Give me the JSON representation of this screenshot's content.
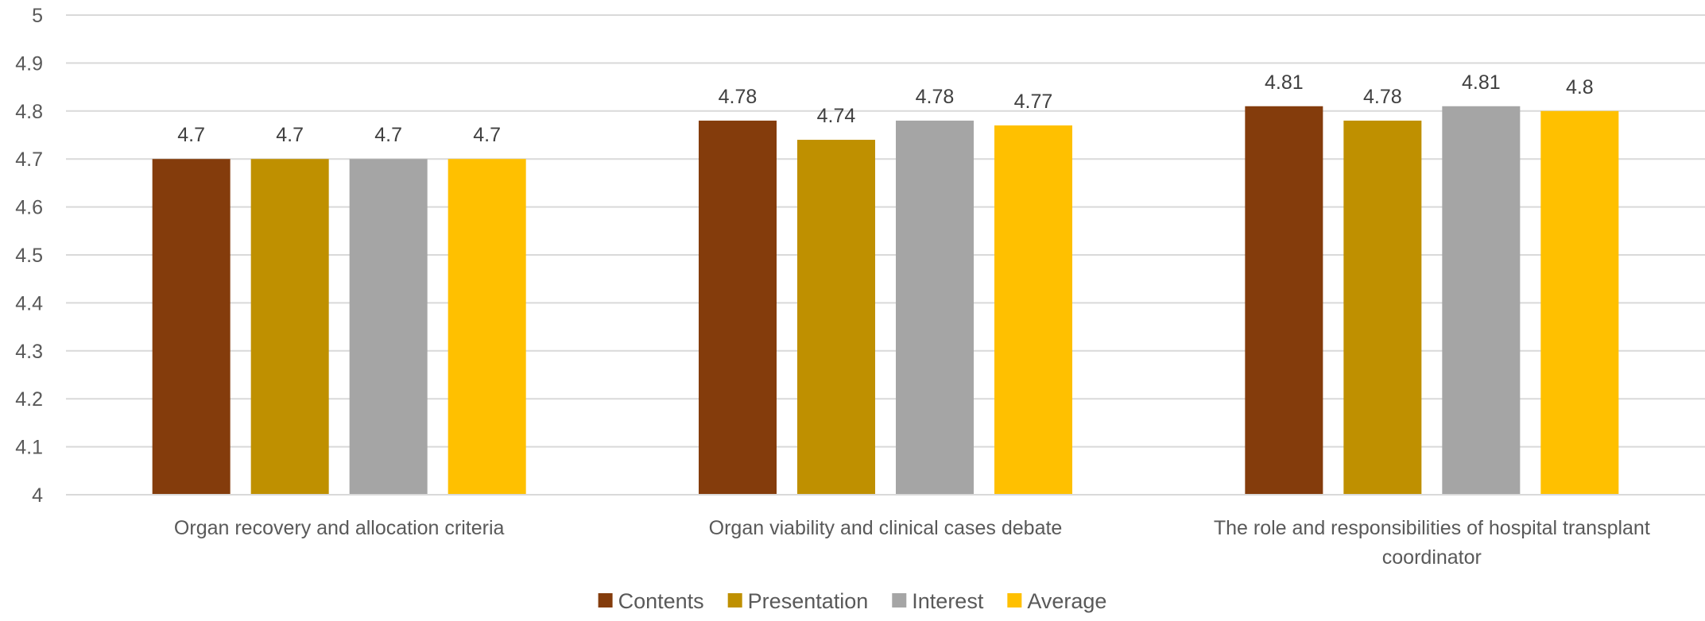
{
  "chart_data": {
    "type": "bar",
    "title": "",
    "xlabel": "",
    "ylabel": "",
    "ylim": [
      4,
      5
    ],
    "ytick_step": 0.1,
    "yticks": [
      "4",
      "4.1",
      "4.2",
      "4.3",
      "4.4",
      "4.5",
      "4.6",
      "4.7",
      "4.8",
      "4.9",
      "5"
    ],
    "grid": true,
    "legend_position": "bottom",
    "categories": [
      [
        "Organ recovery and allocation criteria"
      ],
      [
        "Organ viability and clinical cases debate"
      ],
      [
        "The role and responsibilities of hospital transplant",
        "coordinator"
      ]
    ],
    "series": [
      {
        "name": "Contents",
        "color": "#843c0c",
        "values": [
          4.7,
          4.78,
          4.81
        ],
        "labels": [
          "4.7",
          "4.78",
          "4.81"
        ]
      },
      {
        "name": "Presentation",
        "color": "#bf9000",
        "values": [
          4.7,
          4.74,
          4.78
        ],
        "labels": [
          "4.7",
          "4.74",
          "4.78"
        ]
      },
      {
        "name": "Interest",
        "color": "#a5a5a5",
        "values": [
          4.7,
          4.78,
          4.81
        ],
        "labels": [
          "4.7",
          "4.78",
          "4.81"
        ]
      },
      {
        "name": "Average",
        "color": "#ffc000",
        "values": [
          4.7,
          4.77,
          4.8
        ],
        "labels": [
          "4.7",
          "4.77",
          "4.8"
        ]
      }
    ]
  }
}
